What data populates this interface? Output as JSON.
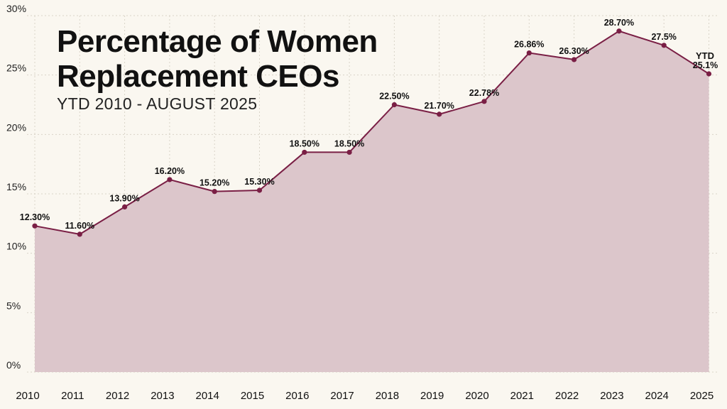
{
  "chart_data": {
    "type": "area",
    "title_lines": [
      "Percentage of Women",
      "Replacement CEOs"
    ],
    "subtitle": "YTD 2010 - AUGUST 2025",
    "categories": [
      "2010",
      "2011",
      "2012",
      "2013",
      "2014",
      "2015",
      "2016",
      "2017",
      "2018",
      "2019",
      "2020",
      "2021",
      "2022",
      "2023",
      "2024",
      "2025"
    ],
    "series": [
      {
        "values": [
          12.3,
          11.6,
          13.9,
          16.2,
          15.2,
          15.3,
          18.5,
          18.5,
          22.5,
          21.7,
          22.78,
          26.86,
          26.3,
          28.7,
          27.5,
          25.1
        ],
        "labels": [
          "12.30%",
          "11.60%",
          "13.90%",
          "16.20%",
          "15.20%",
          "15.30%",
          "18.50%",
          "18.50%",
          "22.50%",
          "21.70%",
          "22.78%",
          "26.86%",
          "26.30%",
          "28.70%",
          "27.5%",
          "25.1%"
        ]
      }
    ],
    "yticks": [
      0,
      5,
      10,
      15,
      20,
      25,
      30
    ],
    "ytick_labels": [
      "0%",
      "5%",
      "10%",
      "15%",
      "20%",
      "25%",
      "30%"
    ],
    "ylim": [
      0,
      30
    ],
    "ytd_label": "YTD",
    "grid": true,
    "colors": {
      "line": "#7a1f45",
      "fill": "#dcc6cb",
      "background": "#faf7f0",
      "grid": "#d9d4c8",
      "text": "#111111"
    }
  }
}
